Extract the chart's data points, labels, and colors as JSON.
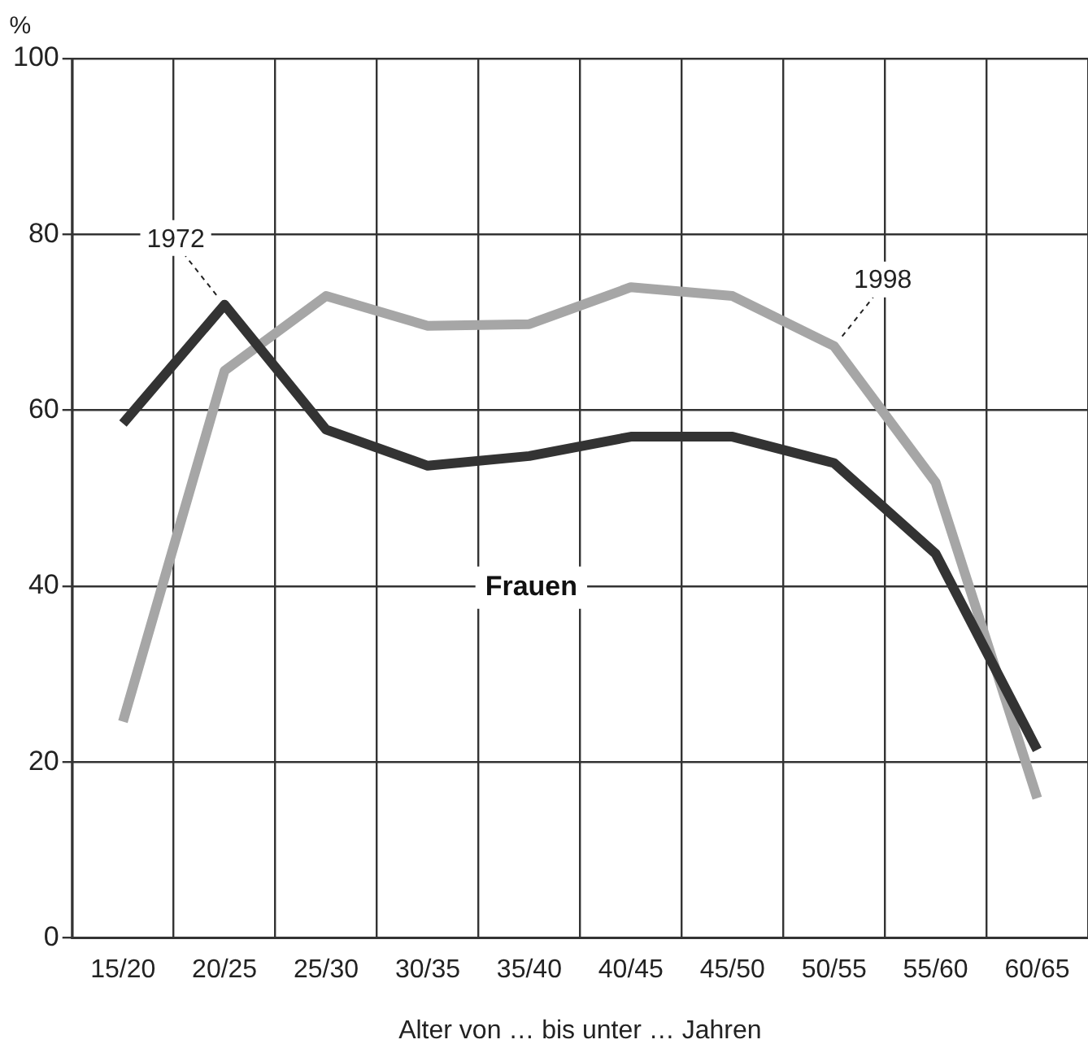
{
  "chart_data": {
    "type": "line",
    "categories": [
      "15/20",
      "20/25",
      "25/30",
      "30/35",
      "35/40",
      "40/45",
      "45/50",
      "50/55",
      "55/60",
      "60/65"
    ],
    "series": [
      {
        "color": "#333333",
        "values": [
          58.5,
          72,
          57.8,
          53.7,
          54.8,
          57,
          57,
          54,
          43.7,
          21.4
        ]
      },
      {
        "color": "#a6a6a6",
        "values": [
          24.6,
          64.5,
          73,
          69.6,
          69.8,
          74,
          73,
          67.3,
          51.8,
          15.9
        ]
      }
    ],
    "ylabel": "%",
    "xlabel": "Alter von … bis unter … Jahren",
    "ylim": [
      0,
      100
    ],
    "yticks": [
      0,
      20,
      40,
      60,
      80,
      100
    ],
    "annotations": [
      {
        "text": "1972",
        "x": "20/25",
        "y": 72
      },
      {
        "text": "1998",
        "x": "50/55",
        "y": 67.3
      },
      "Frauen"
    ],
    "grid": true,
    "legend": false,
    "marker": "none",
    "line_style": "solid"
  }
}
